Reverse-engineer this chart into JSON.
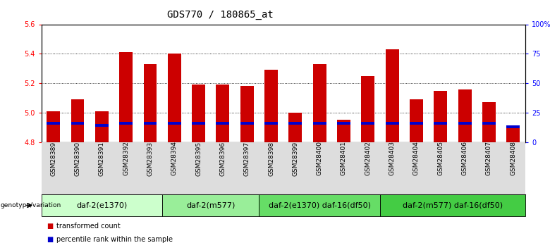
{
  "title": "GDS770 / 180865_at",
  "samples": [
    "GSM28389",
    "GSM28390",
    "GSM28391",
    "GSM28392",
    "GSM28393",
    "GSM28394",
    "GSM28395",
    "GSM28396",
    "GSM28397",
    "GSM28398",
    "GSM28399",
    "GSM28400",
    "GSM28401",
    "GSM28402",
    "GSM28403",
    "GSM28404",
    "GSM28405",
    "GSM28406",
    "GSM28407",
    "GSM28408"
  ],
  "red_values": [
    5.01,
    5.09,
    5.01,
    5.41,
    5.33,
    5.4,
    5.19,
    5.19,
    5.18,
    5.29,
    5.0,
    5.33,
    4.95,
    5.25,
    5.43,
    5.09,
    5.15,
    5.16,
    5.07,
    4.91
  ],
  "blue_pct": [
    15,
    15,
    13,
    15,
    15,
    15,
    15,
    15,
    15,
    15,
    15,
    15,
    15,
    15,
    15,
    15,
    15,
    15,
    15,
    12
  ],
  "ymin": 4.8,
  "ymax": 5.6,
  "y_ticks_left": [
    4.8,
    5.0,
    5.2,
    5.4,
    5.6
  ],
  "y_ticks_right": [
    0,
    25,
    50,
    75,
    100
  ],
  "y_ticks_right_labels": [
    "0",
    "25",
    "50",
    "75",
    "100%"
  ],
  "groups": [
    {
      "label": "daf-2(e1370)",
      "start": 0,
      "end": 5,
      "color": "#ccffcc"
    },
    {
      "label": "daf-2(m577)",
      "start": 5,
      "end": 9,
      "color": "#99ee99"
    },
    {
      "label": "daf-2(e1370) daf-16(df50)",
      "start": 9,
      "end": 14,
      "color": "#66dd66"
    },
    {
      "label": "daf-2(m577) daf-16(df50)",
      "start": 14,
      "end": 20,
      "color": "#44cc44"
    }
  ],
  "genotype_label": "genotype/variation",
  "legend_red_label": "transformed count",
  "legend_blue_label": "percentile rank within the sample",
  "bar_width": 0.55,
  "blue_bar_width": 0.55,
  "red_color": "#cc0000",
  "blue_color": "#0000cc",
  "title_fontsize": 10,
  "tick_label_fontsize": 6.5,
  "group_label_fontsize": 8
}
